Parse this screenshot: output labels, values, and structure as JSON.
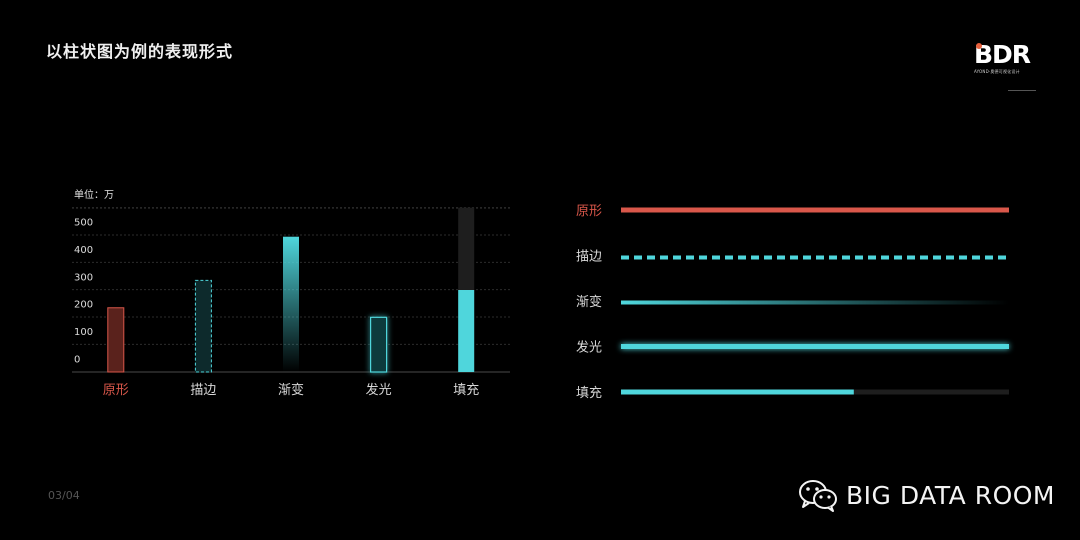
{
  "page": {
    "title": "以柱状图为例的表现形式",
    "page_number": "03/04"
  },
  "logo": {
    "text": "BDR",
    "sub_text": "AYOND·奥德可视化设计"
  },
  "watermark": {
    "icon": "wechat-icon",
    "text": "BIG DATA ROOM"
  },
  "colors": {
    "background": "#000000",
    "accent_red": "#d9574a",
    "accent_cyan": "#4fd6dc",
    "track_gray": "#1e1e1e"
  },
  "chart_data": [
    {
      "type": "bar",
      "unit_label": "单位：万",
      "categories": [
        "原形",
        "描边",
        "渐变",
        "发光",
        "填充"
      ],
      "styles": [
        "solid",
        "dashed-outline",
        "gradient",
        "glow",
        "fill-track"
      ],
      "values": [
        185,
        285,
        445,
        150,
        250
      ],
      "track_max": 500,
      "yticks": [
        0,
        100,
        200,
        300,
        400,
        500
      ],
      "ylim": [
        -50,
        550
      ],
      "grid": true
    },
    {
      "type": "bar",
      "orientation": "horizontal",
      "categories": [
        "原形",
        "描边",
        "渐变",
        "发光",
        "填充"
      ],
      "styles": [
        "solid",
        "dashed",
        "gradient",
        "glow",
        "fill-track"
      ],
      "fill_fraction": [
        1.0,
        1.0,
        1.0,
        1.0,
        0.6
      ]
    }
  ]
}
